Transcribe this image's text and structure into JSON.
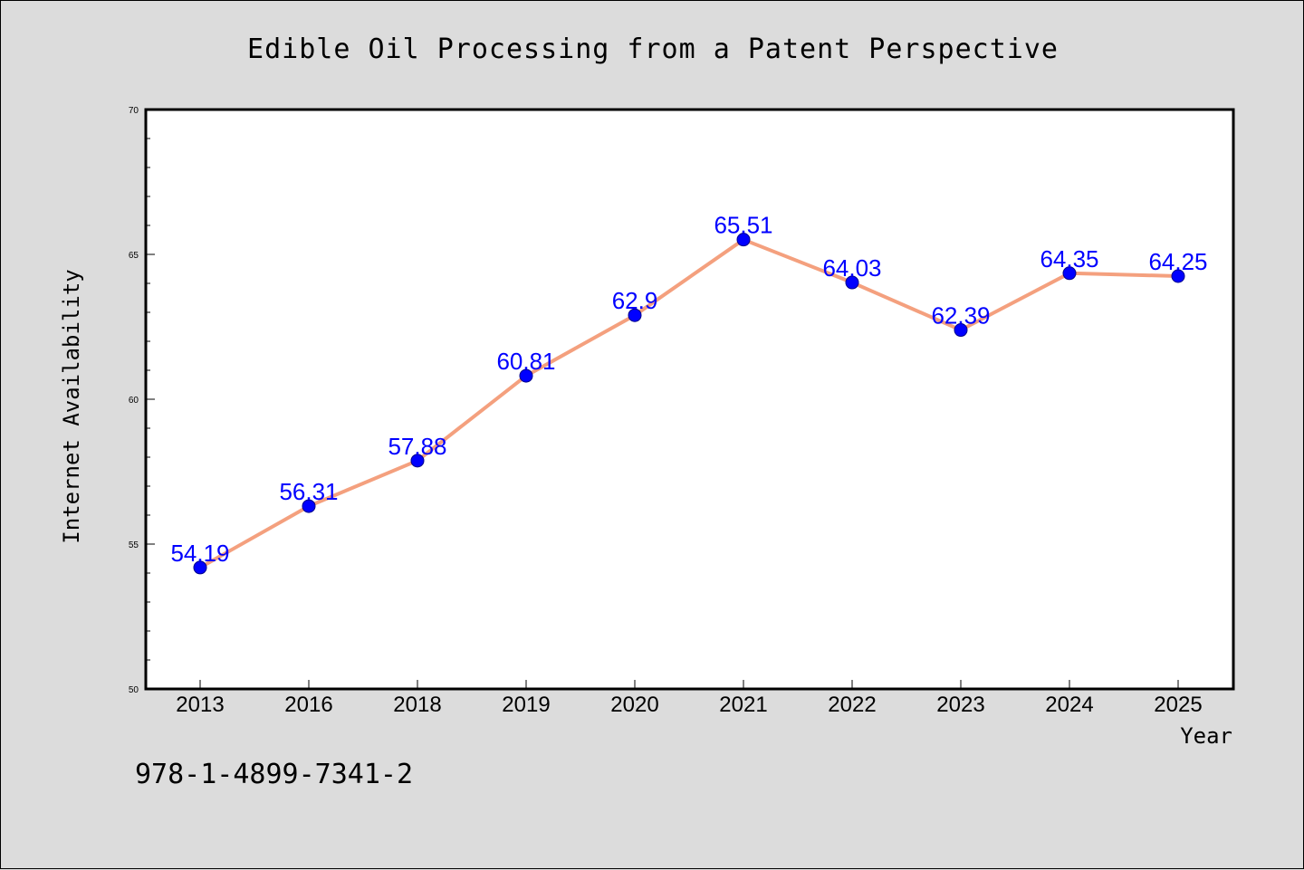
{
  "chart_data": {
    "type": "line",
    "title": "Edible Oil Processing from a Patent Perspective",
    "xlabel": "Year",
    "ylabel": "Internet Availability",
    "categories": [
      "2013",
      "2016",
      "2018",
      "2019",
      "2020",
      "2021",
      "2022",
      "2023",
      "2024",
      "2025"
    ],
    "values": [
      54.19,
      56.31,
      57.88,
      60.81,
      62.9,
      65.51,
      64.03,
      62.39,
      64.35,
      64.25
    ],
    "data_labels": [
      "54.19",
      "56.31",
      "57.88",
      "60.81",
      "62.9",
      "65.51",
      "64.03",
      "62.39",
      "64.35",
      "64.25"
    ],
    "ylim": [
      50,
      70
    ],
    "yticks": [
      50,
      55,
      60,
      65,
      70
    ],
    "grid": false,
    "line_color": "#f4a07e",
    "marker_color": "#0000ff",
    "label_color": "#0000ff"
  },
  "footnote": "978-1-4899-7341-2"
}
